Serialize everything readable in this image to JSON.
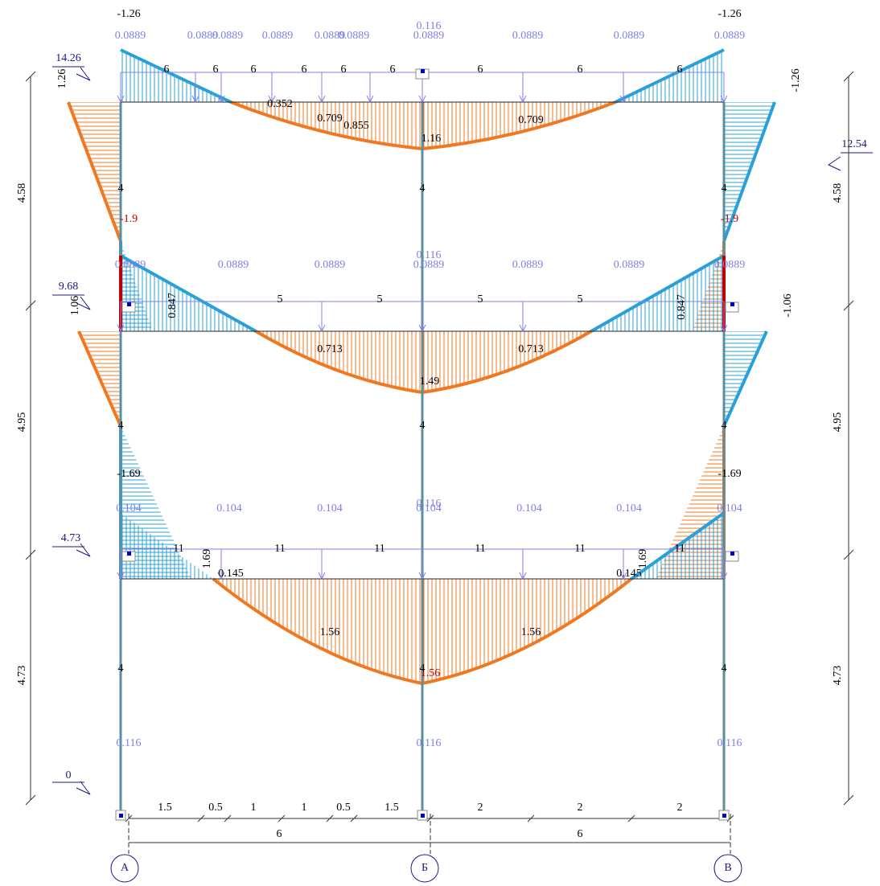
{
  "labels": [
    "-1.26",
    "-1.26",
    "0.116",
    "0.0889",
    "0.0889",
    "0.0889",
    "0.0889",
    "0.0889",
    "0.0889",
    "0.0889",
    "0.0889",
    "0.0889",
    "0.0889",
    "14.26",
    "1.26",
    "6",
    "6",
    "6",
    "6",
    "6",
    "6",
    "6",
    "6",
    "6",
    "0.352",
    "0.709",
    "0.855",
    "1.16",
    "0.709",
    "-1.26",
    "12.54",
    "4.58",
    "4.58",
    "4",
    "4",
    "4",
    "-1.9",
    "-1.9",
    "0.116",
    "0.0889",
    "0.0889",
    "0.0889",
    "0.0889",
    "0.0889",
    "0.0889",
    "0.0889",
    "9.68",
    "1.06",
    "0.847",
    "0.847",
    "5",
    "5",
    "5",
    "5",
    "-1.06",
    "0.713",
    "1.49",
    "0.713",
    "4.95",
    "4.95",
    "4",
    "4",
    "4",
    "-1.69",
    "-1.69",
    "0.116",
    "0.104",
    "0.104",
    "0.104",
    "0.104",
    "0.104",
    "0.104",
    "0.104",
    "4.73",
    "11",
    "11",
    "11",
    "11",
    "11",
    "11",
    "1.69",
    "1.69",
    "0.145",
    "0.145",
    "1.56",
    "1.56",
    "1.56",
    "4.73",
    "4.73",
    "4",
    "4",
    "4",
    "0.116",
    "0.116",
    "0.116",
    "0",
    "1.5",
    "0.5",
    "1",
    "1",
    "0.5",
    "1.5",
    "2",
    "2",
    "2",
    "6",
    "6",
    "А",
    "Б",
    "В"
  ]
}
